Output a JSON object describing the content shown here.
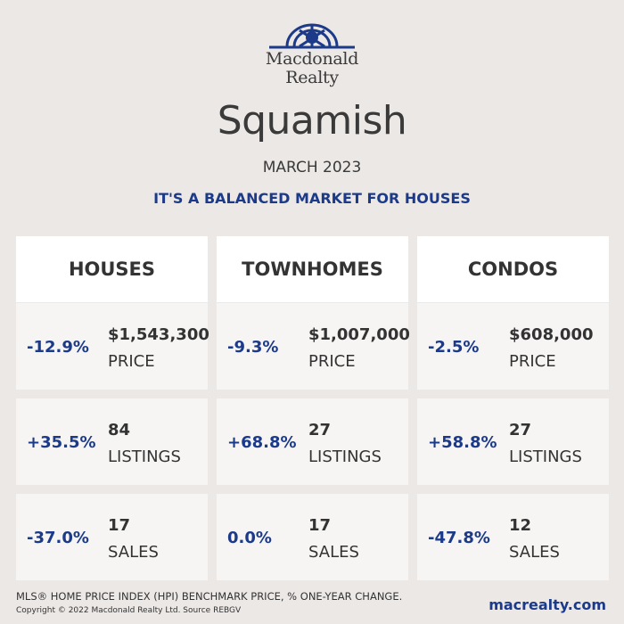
{
  "brand": {
    "line1": "Macdonald",
    "line2": "Realty",
    "logo_icon": "macdonald-realty-logo",
    "color": "#1c3a8a"
  },
  "city": "Squamish",
  "period": "MARCH 2023",
  "headline": "IT'S A BALANCED MARKET FOR HOUSES",
  "columns": [
    {
      "title": "HOUSES",
      "rows": [
        {
          "change": "-12.9%",
          "value": "$1,543,300",
          "label": "PRICE"
        },
        {
          "change": "+35.5%",
          "value": "84",
          "label": "LISTINGS"
        },
        {
          "change": "-37.0%",
          "value": "17",
          "label": "SALES"
        }
      ]
    },
    {
      "title": "TOWNHOMES",
      "rows": [
        {
          "change": "-9.3%",
          "value": "$1,007,000",
          "label": "PRICE"
        },
        {
          "change": "+68.8%",
          "value": "27",
          "label": "LISTINGS"
        },
        {
          "change": "0.0%",
          "value": "17",
          "label": "SALES"
        }
      ]
    },
    {
      "title": "CONDOS",
      "rows": [
        {
          "change": "-2.5%",
          "value": "$608,000",
          "label": "PRICE"
        },
        {
          "change": "+58.8%",
          "value": "27",
          "label": "LISTINGS"
        },
        {
          "change": "-47.8%",
          "value": "12",
          "label": "SALES"
        }
      ]
    }
  ],
  "footer": {
    "note": "MLS® HOME PRICE INDEX (HPI) BENCHMARK PRICE, % ONE-YEAR CHANGE.",
    "copyright": "Copyright © 2022 Macdonald Realty Ltd. Source REBGV",
    "website": "macrealty.com"
  }
}
